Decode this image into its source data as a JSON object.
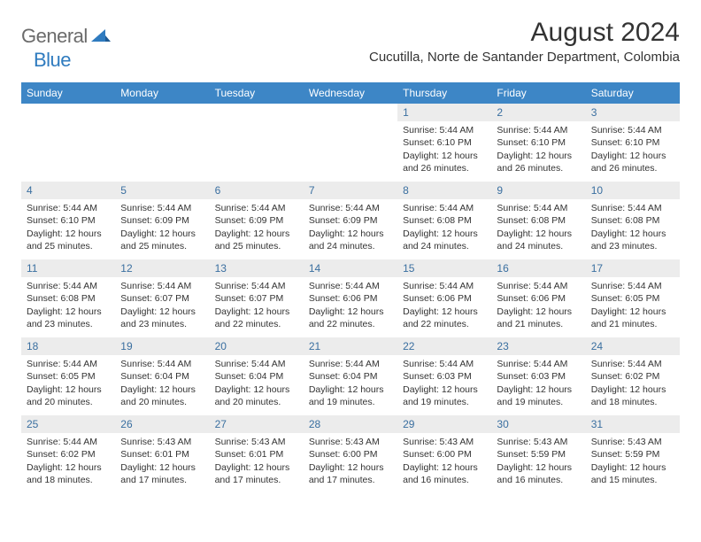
{
  "logo": {
    "general": "General",
    "blue": "Blue"
  },
  "header": {
    "month_title": "August 2024",
    "location": "Cucutilla, Norte de Santander Department, Colombia"
  },
  "colors": {
    "header_bg": "#3d86c6",
    "daynum_bg": "#ececec",
    "daynum_color": "#3a6fa0",
    "logo_blue": "#2f7bbf",
    "logo_gray": "#6b6b6b"
  },
  "daynames": [
    "Sunday",
    "Monday",
    "Tuesday",
    "Wednesday",
    "Thursday",
    "Friday",
    "Saturday"
  ],
  "weeks": [
    [
      {
        "empty": true
      },
      {
        "empty": true
      },
      {
        "empty": true
      },
      {
        "empty": true
      },
      {
        "n": "1",
        "sr": "Sunrise: 5:44 AM",
        "ss": "Sunset: 6:10 PM",
        "d1": "Daylight: 12 hours",
        "d2": "and 26 minutes."
      },
      {
        "n": "2",
        "sr": "Sunrise: 5:44 AM",
        "ss": "Sunset: 6:10 PM",
        "d1": "Daylight: 12 hours",
        "d2": "and 26 minutes."
      },
      {
        "n": "3",
        "sr": "Sunrise: 5:44 AM",
        "ss": "Sunset: 6:10 PM",
        "d1": "Daylight: 12 hours",
        "d2": "and 26 minutes."
      }
    ],
    [
      {
        "n": "4",
        "sr": "Sunrise: 5:44 AM",
        "ss": "Sunset: 6:10 PM",
        "d1": "Daylight: 12 hours",
        "d2": "and 25 minutes."
      },
      {
        "n": "5",
        "sr": "Sunrise: 5:44 AM",
        "ss": "Sunset: 6:09 PM",
        "d1": "Daylight: 12 hours",
        "d2": "and 25 minutes."
      },
      {
        "n": "6",
        "sr": "Sunrise: 5:44 AM",
        "ss": "Sunset: 6:09 PM",
        "d1": "Daylight: 12 hours",
        "d2": "and 25 minutes."
      },
      {
        "n": "7",
        "sr": "Sunrise: 5:44 AM",
        "ss": "Sunset: 6:09 PM",
        "d1": "Daylight: 12 hours",
        "d2": "and 24 minutes."
      },
      {
        "n": "8",
        "sr": "Sunrise: 5:44 AM",
        "ss": "Sunset: 6:08 PM",
        "d1": "Daylight: 12 hours",
        "d2": "and 24 minutes."
      },
      {
        "n": "9",
        "sr": "Sunrise: 5:44 AM",
        "ss": "Sunset: 6:08 PM",
        "d1": "Daylight: 12 hours",
        "d2": "and 24 minutes."
      },
      {
        "n": "10",
        "sr": "Sunrise: 5:44 AM",
        "ss": "Sunset: 6:08 PM",
        "d1": "Daylight: 12 hours",
        "d2": "and 23 minutes."
      }
    ],
    [
      {
        "n": "11",
        "sr": "Sunrise: 5:44 AM",
        "ss": "Sunset: 6:08 PM",
        "d1": "Daylight: 12 hours",
        "d2": "and 23 minutes."
      },
      {
        "n": "12",
        "sr": "Sunrise: 5:44 AM",
        "ss": "Sunset: 6:07 PM",
        "d1": "Daylight: 12 hours",
        "d2": "and 23 minutes."
      },
      {
        "n": "13",
        "sr": "Sunrise: 5:44 AM",
        "ss": "Sunset: 6:07 PM",
        "d1": "Daylight: 12 hours",
        "d2": "and 22 minutes."
      },
      {
        "n": "14",
        "sr": "Sunrise: 5:44 AM",
        "ss": "Sunset: 6:06 PM",
        "d1": "Daylight: 12 hours",
        "d2": "and 22 minutes."
      },
      {
        "n": "15",
        "sr": "Sunrise: 5:44 AM",
        "ss": "Sunset: 6:06 PM",
        "d1": "Daylight: 12 hours",
        "d2": "and 22 minutes."
      },
      {
        "n": "16",
        "sr": "Sunrise: 5:44 AM",
        "ss": "Sunset: 6:06 PM",
        "d1": "Daylight: 12 hours",
        "d2": "and 21 minutes."
      },
      {
        "n": "17",
        "sr": "Sunrise: 5:44 AM",
        "ss": "Sunset: 6:05 PM",
        "d1": "Daylight: 12 hours",
        "d2": "and 21 minutes."
      }
    ],
    [
      {
        "n": "18",
        "sr": "Sunrise: 5:44 AM",
        "ss": "Sunset: 6:05 PM",
        "d1": "Daylight: 12 hours",
        "d2": "and 20 minutes."
      },
      {
        "n": "19",
        "sr": "Sunrise: 5:44 AM",
        "ss": "Sunset: 6:04 PM",
        "d1": "Daylight: 12 hours",
        "d2": "and 20 minutes."
      },
      {
        "n": "20",
        "sr": "Sunrise: 5:44 AM",
        "ss": "Sunset: 6:04 PM",
        "d1": "Daylight: 12 hours",
        "d2": "and 20 minutes."
      },
      {
        "n": "21",
        "sr": "Sunrise: 5:44 AM",
        "ss": "Sunset: 6:04 PM",
        "d1": "Daylight: 12 hours",
        "d2": "and 19 minutes."
      },
      {
        "n": "22",
        "sr": "Sunrise: 5:44 AM",
        "ss": "Sunset: 6:03 PM",
        "d1": "Daylight: 12 hours",
        "d2": "and 19 minutes."
      },
      {
        "n": "23",
        "sr": "Sunrise: 5:44 AM",
        "ss": "Sunset: 6:03 PM",
        "d1": "Daylight: 12 hours",
        "d2": "and 19 minutes."
      },
      {
        "n": "24",
        "sr": "Sunrise: 5:44 AM",
        "ss": "Sunset: 6:02 PM",
        "d1": "Daylight: 12 hours",
        "d2": "and 18 minutes."
      }
    ],
    [
      {
        "n": "25",
        "sr": "Sunrise: 5:44 AM",
        "ss": "Sunset: 6:02 PM",
        "d1": "Daylight: 12 hours",
        "d2": "and 18 minutes."
      },
      {
        "n": "26",
        "sr": "Sunrise: 5:43 AM",
        "ss": "Sunset: 6:01 PM",
        "d1": "Daylight: 12 hours",
        "d2": "and 17 minutes."
      },
      {
        "n": "27",
        "sr": "Sunrise: 5:43 AM",
        "ss": "Sunset: 6:01 PM",
        "d1": "Daylight: 12 hours",
        "d2": "and 17 minutes."
      },
      {
        "n": "28",
        "sr": "Sunrise: 5:43 AM",
        "ss": "Sunset: 6:00 PM",
        "d1": "Daylight: 12 hours",
        "d2": "and 17 minutes."
      },
      {
        "n": "29",
        "sr": "Sunrise: 5:43 AM",
        "ss": "Sunset: 6:00 PM",
        "d1": "Daylight: 12 hours",
        "d2": "and 16 minutes."
      },
      {
        "n": "30",
        "sr": "Sunrise: 5:43 AM",
        "ss": "Sunset: 5:59 PM",
        "d1": "Daylight: 12 hours",
        "d2": "and 16 minutes."
      },
      {
        "n": "31",
        "sr": "Sunrise: 5:43 AM",
        "ss": "Sunset: 5:59 PM",
        "d1": "Daylight: 12 hours",
        "d2": "and 15 minutes."
      }
    ]
  ]
}
